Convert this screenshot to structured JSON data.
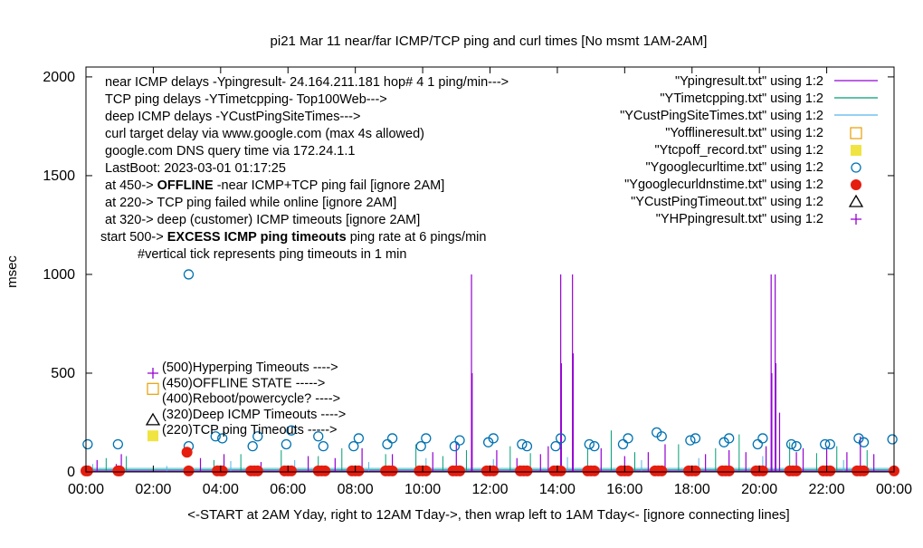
{
  "chart_data": {
    "type": "line",
    "title": "pi21 Mar 11  near/far ICMP/TCP ping and curl times [No msmt 1AM-2AM]",
    "xlabel": "<-START at 2AM Yday, right to 12AM Tday->, then wrap left to 1AM Tday<- [ignore connecting lines]",
    "ylabel": "msec",
    "xlim": [
      0,
      24
    ],
    "ylim": [
      0,
      2050
    ],
    "x_ticks": [
      "00:00",
      "02:00",
      "04:00",
      "06:00",
      "08:00",
      "10:00",
      "12:00",
      "14:00",
      "16:00",
      "18:00",
      "20:00",
      "22:00",
      "00:00"
    ],
    "y_ticks": [
      "0",
      "500",
      "1000",
      "1500",
      "2000"
    ],
    "y_tick_values": [
      0,
      500,
      1000,
      1500,
      2000
    ],
    "grid": false,
    "legend_position": "top-right",
    "info_lines": [
      "near ICMP delays -Ypingresult- 24.164.211.181 hop# 4 1 ping/min--->",
      "TCP ping delays -YTimetcpping- Top100Web--->",
      "deep ICMP delays -YCustPingSiteTimes--->",
      "curl target delay via www.google.com (max 4s allowed)",
      "google.com DNS query time via 172.24.1.1",
      "LastBoot: 2023-03-01 01:17:25"
    ],
    "state_lines": [
      {
        "prefix": "at 450-> ",
        "bold": "OFFLINE",
        "suffix": " -near ICMP+TCP ping fail [ignore 2AM]"
      },
      {
        "prefix": "at 220-> TCP ping failed while online [ignore 2AM]",
        "bold": "",
        "suffix": ""
      },
      {
        "prefix": "at 320-> deep (customer) ICMP timeouts [ignore 2AM]",
        "bold": "",
        "suffix": ""
      },
      {
        "prefix": "start 500-> ",
        "bold": "EXCESS ICMP ping timeouts",
        "suffix": "  ping rate at 6 pings/min"
      },
      {
        "prefix": "#vertical tick represents ping timeouts in 1 min",
        "bold": "",
        "suffix": ""
      }
    ],
    "marker_labels": [
      {
        "text": "(500)Hyperping Timeouts ---->",
        "y": 500,
        "marker": "plus",
        "color": "#9400d3"
      },
      {
        "text": "(450)OFFLINE STATE ----->",
        "y": 450,
        "marker": "open-square",
        "color": "#e69f00"
      },
      {
        "text": "(400)Reboot/powercycle? ---->",
        "y": 400,
        "marker": "none",
        "color": "#000000"
      },
      {
        "text": "(320)Deep ICMP Timeouts ---->",
        "y": 320,
        "marker": "open-triangle",
        "color": "#000000"
      },
      {
        "text": "(220)TCP ping Timeouts ----->",
        "y": 220,
        "marker": "filled-square",
        "color": "#f0e442"
      }
    ],
    "series": [
      {
        "name": "\"Ypingresult.txt\" using 1:2",
        "style": "line",
        "color": "#9400d3"
      },
      {
        "name": "\"YTimetcpping.txt\" using 1:2",
        "style": "line",
        "color": "#009e73"
      },
      {
        "name": "\"YCustPingSiteTimes.txt\" using 1:2",
        "style": "line",
        "color": "#56b4e9"
      },
      {
        "name": "\"Yofflineresult.txt\" using 1:2",
        "style": "open-square",
        "color": "#e69f00"
      },
      {
        "name": "\"Ytcpoff_record.txt\" using 1:2",
        "style": "filled-square",
        "color": "#f0e442"
      },
      {
        "name": "\"Ygooglecurltime.txt\" using 1:2",
        "style": "open-circle",
        "color": "#0072b2"
      },
      {
        "name": "\"Ygooglecurldnstime.txt\" using 1:2",
        "style": "filled-circle",
        "color": "#e51e10"
      },
      {
        "name": "\"YCustPingTimeout.txt\" using 1:2",
        "style": "open-triangle",
        "color": "#000000"
      },
      {
        "name": "\"YHPpingresult.txt\" using 1:2",
        "style": "plus",
        "color": "#9400d3"
      }
    ],
    "ping_spikes": [
      {
        "x": 0.33,
        "y": 60
      },
      {
        "x": 0.9,
        "y": 40
      },
      {
        "x": 1.05,
        "y": 90
      },
      {
        "x": 3.4,
        "y": 70
      },
      {
        "x": 4.1,
        "y": 90
      },
      {
        "x": 5.2,
        "y": 50
      },
      {
        "x": 6.6,
        "y": 80
      },
      {
        "x": 7.4,
        "y": 70
      },
      {
        "x": 8.2,
        "y": 120
      },
      {
        "x": 9.1,
        "y": 90
      },
      {
        "x": 10.3,
        "y": 100
      },
      {
        "x": 11.0,
        "y": 150
      },
      {
        "x": 11.45,
        "y": 1000
      },
      {
        "x": 11.47,
        "y": 500
      },
      {
        "x": 12.2,
        "y": 110
      },
      {
        "x": 12.8,
        "y": 70
      },
      {
        "x": 13.5,
        "y": 90
      },
      {
        "x": 13.73,
        "y": 130
      },
      {
        "x": 14.1,
        "y": 1000
      },
      {
        "x": 14.12,
        "y": 550
      },
      {
        "x": 14.45,
        "y": 1000
      },
      {
        "x": 14.47,
        "y": 600
      },
      {
        "x": 15.3,
        "y": 120
      },
      {
        "x": 16.0,
        "y": 80
      },
      {
        "x": 16.7,
        "y": 100
      },
      {
        "x": 17.2,
        "y": 140
      },
      {
        "x": 18.4,
        "y": 90
      },
      {
        "x": 19.1,
        "y": 110
      },
      {
        "x": 19.6,
        "y": 100
      },
      {
        "x": 20.2,
        "y": 130
      },
      {
        "x": 20.35,
        "y": 1000
      },
      {
        "x": 20.37,
        "y": 500
      },
      {
        "x": 20.47,
        "y": 1000
      },
      {
        "x": 20.49,
        "y": 550
      },
      {
        "x": 20.6,
        "y": 300
      },
      {
        "x": 21.1,
        "y": 100
      },
      {
        "x": 21.3,
        "y": 120
      },
      {
        "x": 22.0,
        "y": 120
      },
      {
        "x": 22.6,
        "y": 100
      },
      {
        "x": 23.0,
        "y": 180
      },
      {
        "x": 23.4,
        "y": 90
      }
    ],
    "tcp_spikes": [
      {
        "x": 0.6,
        "y": 70
      },
      {
        "x": 1.2,
        "y": 80
      },
      {
        "x": 3.8,
        "y": 60
      },
      {
        "x": 4.6,
        "y": 90
      },
      {
        "x": 5.8,
        "y": 110
      },
      {
        "x": 6.9,
        "y": 80
      },
      {
        "x": 7.6,
        "y": 120
      },
      {
        "x": 8.9,
        "y": 90
      },
      {
        "x": 9.8,
        "y": 140
      },
      {
        "x": 10.6,
        "y": 80
      },
      {
        "x": 11.3,
        "y": 110
      },
      {
        "x": 12.6,
        "y": 130
      },
      {
        "x": 13.2,
        "y": 95
      },
      {
        "x": 14.9,
        "y": 115
      },
      {
        "x": 15.6,
        "y": 210
      },
      {
        "x": 16.3,
        "y": 100
      },
      {
        "x": 17.6,
        "y": 140
      },
      {
        "x": 18.7,
        "y": 120
      },
      {
        "x": 19.4,
        "y": 190
      },
      {
        "x": 20.9,
        "y": 150
      },
      {
        "x": 21.7,
        "y": 95
      },
      {
        "x": 22.3,
        "y": 130
      },
      {
        "x": 23.2,
        "y": 110
      }
    ],
    "cust_spikes": [
      {
        "x": 0.2,
        "y": 40
      },
      {
        "x": 2.4,
        "y": 30
      },
      {
        "x": 4.3,
        "y": 55
      },
      {
        "x": 6.2,
        "y": 60
      },
      {
        "x": 8.4,
        "y": 50
      },
      {
        "x": 10.1,
        "y": 70
      },
      {
        "x": 12.1,
        "y": 65
      },
      {
        "x": 14.3,
        "y": 75
      },
      {
        "x": 16.5,
        "y": 60
      },
      {
        "x": 18.2,
        "y": 70
      },
      {
        "x": 20.1,
        "y": 80
      },
      {
        "x": 22.5,
        "y": 60
      }
    ],
    "curl_points": [
      {
        "x": 0.05,
        "y": 140
      },
      {
        "x": 0.95,
        "y": 140
      },
      {
        "x": 3.05,
        "y": 1000
      },
      {
        "x": 3.05,
        "y": 130
      },
      {
        "x": 3.85,
        "y": 180
      },
      {
        "x": 4.05,
        "y": 170
      },
      {
        "x": 4.95,
        "y": 130
      },
      {
        "x": 5.1,
        "y": 180
      },
      {
        "x": 5.95,
        "y": 140
      },
      {
        "x": 6.1,
        "y": 210
      },
      {
        "x": 6.9,
        "y": 180
      },
      {
        "x": 7.05,
        "y": 130
      },
      {
        "x": 7.95,
        "y": 130
      },
      {
        "x": 8.1,
        "y": 170
      },
      {
        "x": 8.95,
        "y": 140
      },
      {
        "x": 9.1,
        "y": 170
      },
      {
        "x": 9.95,
        "y": 130
      },
      {
        "x": 10.1,
        "y": 170
      },
      {
        "x": 10.95,
        "y": 130
      },
      {
        "x": 11.1,
        "y": 160
      },
      {
        "x": 11.95,
        "y": 150
      },
      {
        "x": 12.1,
        "y": 170
      },
      {
        "x": 12.95,
        "y": 140
      },
      {
        "x": 13.1,
        "y": 130
      },
      {
        "x": 13.95,
        "y": 130
      },
      {
        "x": 14.1,
        "y": 170
      },
      {
        "x": 14.95,
        "y": 140
      },
      {
        "x": 15.1,
        "y": 130
      },
      {
        "x": 15.95,
        "y": 140
      },
      {
        "x": 16.1,
        "y": 170
      },
      {
        "x": 16.95,
        "y": 200
      },
      {
        "x": 17.1,
        "y": 180
      },
      {
        "x": 17.95,
        "y": 160
      },
      {
        "x": 18.1,
        "y": 170
      },
      {
        "x": 18.95,
        "y": 150
      },
      {
        "x": 19.1,
        "y": 170
      },
      {
        "x": 19.95,
        "y": 140
      },
      {
        "x": 20.1,
        "y": 170
      },
      {
        "x": 20.95,
        "y": 140
      },
      {
        "x": 21.1,
        "y": 130
      },
      {
        "x": 21.95,
        "y": 140
      },
      {
        "x": 22.1,
        "y": 140
      },
      {
        "x": 22.95,
        "y": 170
      },
      {
        "x": 23.1,
        "y": 150
      },
      {
        "x": 23.95,
        "y": 165
      }
    ],
    "dns_points": [
      {
        "x": 0.0,
        "y": 5
      },
      {
        "x": 0.05,
        "y": 5
      },
      {
        "x": 0.95,
        "y": 5
      },
      {
        "x": 1.0,
        "y": 5
      },
      {
        "x": 3.0,
        "y": 100
      },
      {
        "x": 3.05,
        "y": 5
      },
      {
        "x": 3.9,
        "y": 5
      },
      {
        "x": 4.0,
        "y": 5
      },
      {
        "x": 4.05,
        "y": 5
      },
      {
        "x": 4.9,
        "y": 5
      },
      {
        "x": 5.0,
        "y": 5
      },
      {
        "x": 5.1,
        "y": 5
      },
      {
        "x": 5.9,
        "y": 5
      },
      {
        "x": 6.0,
        "y": 5
      },
      {
        "x": 6.1,
        "y": 5
      },
      {
        "x": 6.9,
        "y": 5
      },
      {
        "x": 7.0,
        "y": 5
      },
      {
        "x": 7.1,
        "y": 5
      },
      {
        "x": 7.9,
        "y": 5
      },
      {
        "x": 8.0,
        "y": 5
      },
      {
        "x": 8.1,
        "y": 5
      },
      {
        "x": 8.9,
        "y": 5
      },
      {
        "x": 9.0,
        "y": 5
      },
      {
        "x": 9.1,
        "y": 5
      },
      {
        "x": 9.9,
        "y": 5
      },
      {
        "x": 10.0,
        "y": 5
      },
      {
        "x": 10.1,
        "y": 5
      },
      {
        "x": 10.9,
        "y": 5
      },
      {
        "x": 11.0,
        "y": 5
      },
      {
        "x": 11.1,
        "y": 5
      },
      {
        "x": 11.9,
        "y": 5
      },
      {
        "x": 12.0,
        "y": 5
      },
      {
        "x": 12.1,
        "y": 5
      },
      {
        "x": 12.9,
        "y": 5
      },
      {
        "x": 13.0,
        "y": 5
      },
      {
        "x": 13.1,
        "y": 5
      },
      {
        "x": 13.9,
        "y": 5
      },
      {
        "x": 14.0,
        "y": 5
      },
      {
        "x": 14.1,
        "y": 5
      },
      {
        "x": 14.9,
        "y": 5
      },
      {
        "x": 15.0,
        "y": 5
      },
      {
        "x": 15.1,
        "y": 5
      },
      {
        "x": 15.9,
        "y": 5
      },
      {
        "x": 16.0,
        "y": 5
      },
      {
        "x": 16.1,
        "y": 5
      },
      {
        "x": 16.9,
        "y": 5
      },
      {
        "x": 17.0,
        "y": 5
      },
      {
        "x": 17.1,
        "y": 5
      },
      {
        "x": 17.9,
        "y": 5
      },
      {
        "x": 18.0,
        "y": 5
      },
      {
        "x": 18.1,
        "y": 5
      },
      {
        "x": 18.9,
        "y": 5
      },
      {
        "x": 19.0,
        "y": 5
      },
      {
        "x": 19.1,
        "y": 5
      },
      {
        "x": 19.9,
        "y": 5
      },
      {
        "x": 20.0,
        "y": 5
      },
      {
        "x": 20.1,
        "y": 5
      },
      {
        "x": 20.9,
        "y": 5
      },
      {
        "x": 21.0,
        "y": 5
      },
      {
        "x": 21.1,
        "y": 5
      },
      {
        "x": 21.9,
        "y": 5
      },
      {
        "x": 22.0,
        "y": 5
      },
      {
        "x": 22.1,
        "y": 5
      },
      {
        "x": 22.9,
        "y": 5
      },
      {
        "x": 23.0,
        "y": 5
      },
      {
        "x": 23.1,
        "y": 5
      },
      {
        "x": 24.0,
        "y": 5
      }
    ]
  }
}
